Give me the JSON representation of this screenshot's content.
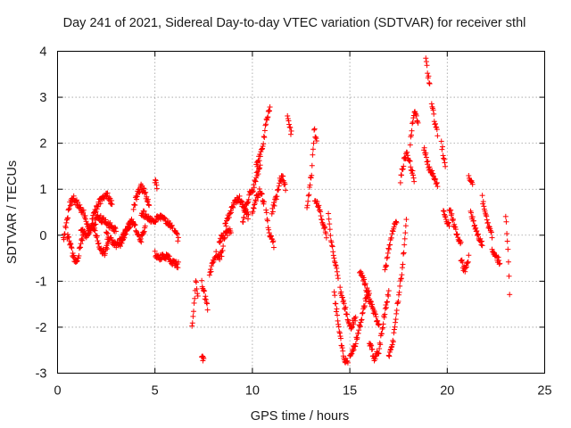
{
  "chart_data": {
    "type": "scatter",
    "title": "Day 241 of 2021, Sidereal Day-to-day VTEC variation (SDTVAR) for receiver sthl",
    "xlabel": "GPS time / hours",
    "ylabel": "SDTVAR / TECUs",
    "xlim": [
      0,
      25
    ],
    "ylim": [
      -3,
      4
    ],
    "xticks": [
      "0",
      "5",
      "10",
      "15",
      "20",
      "25"
    ],
    "yticks": [
      "-3",
      "-2",
      "-1",
      "0",
      "1",
      "2",
      "3",
      "4"
    ],
    "grid": true,
    "marker": "plus",
    "series_color": "#ff0000",
    "segments": [
      {
        "t0": 0.3,
        "t1": 2.0,
        "ys": [
          -0.1,
          0.3,
          0.7,
          0.8,
          0.7,
          0.6,
          0.5,
          0.3,
          0.1,
          0.4,
          0.6
        ]
      },
      {
        "t0": 0.5,
        "t1": 1.3,
        "ys": [
          0.0,
          -0.2,
          -0.5,
          -0.6,
          -0.3,
          0.0
        ]
      },
      {
        "t0": 1.2,
        "t1": 3.0,
        "ys": [
          0.1,
          0.0,
          0.2,
          0.4,
          0.3,
          0.2,
          0.1
        ]
      },
      {
        "t0": 1.8,
        "t1": 2.6,
        "ys": [
          0.2,
          0.0,
          -0.3,
          -0.4,
          -0.2
        ]
      },
      {
        "t0": 2.0,
        "t1": 2.8,
        "ys": [
          0.6,
          0.8,
          0.9,
          0.7
        ]
      },
      {
        "t0": 2.5,
        "t1": 3.8,
        "ys": [
          0.0,
          -0.1,
          -0.2,
          -0.1,
          0.1,
          0.3
        ]
      },
      {
        "t0": 3.2,
        "t1": 4.5,
        "ys": [
          -0.2,
          0.0,
          0.2,
          0.3,
          0.1,
          -0.1,
          0.2
        ]
      },
      {
        "t0": 3.9,
        "t1": 4.7,
        "ys": [
          0.6,
          0.9,
          1.05,
          0.9,
          0.7
        ]
      },
      {
        "t0": 4.3,
        "t1": 5.9,
        "ys": [
          0.5,
          0.4,
          0.3,
          0.4,
          0.3,
          0.2
        ]
      },
      {
        "t0": 5.0,
        "t1": 5.1,
        "ys": [
          1.2,
          1.0
        ]
      },
      {
        "t0": 5.0,
        "t1": 6.2,
        "ys": [
          -0.4,
          -0.5,
          -0.45,
          -0.5,
          -0.6,
          -0.65
        ]
      },
      {
        "t0": 6.0,
        "t1": 6.2,
        "ys": [
          0.1,
          -0.1
        ]
      },
      {
        "t0": 6.9,
        "t1": 7.2,
        "ys": [
          -2.0,
          -1.5,
          -1.0,
          -1.3
        ]
      },
      {
        "t0": 7.4,
        "t1": 7.7,
        "ys": [
          -1.0,
          -1.3,
          -1.6
        ]
      },
      {
        "t0": 7.4,
        "t1": 7.5,
        "ys": [
          -2.7,
          -2.7
        ]
      },
      {
        "t0": 7.8,
        "t1": 8.5,
        "ys": [
          -0.9,
          -0.6,
          -0.4,
          -0.5,
          -0.3
        ]
      },
      {
        "t0": 8.3,
        "t1": 8.9,
        "ys": [
          -0.1,
          0.0,
          0.1
        ]
      },
      {
        "t0": 8.6,
        "t1": 9.8,
        "ys": [
          0.2,
          0.5,
          0.7,
          0.8,
          0.6,
          0.4
        ]
      },
      {
        "t0": 9.5,
        "t1": 10.4,
        "ys": [
          0.3,
          0.6,
          0.9,
          1.0,
          1.3,
          1.5
        ]
      },
      {
        "t0": 10.2,
        "t1": 10.9,
        "ys": [
          1.5,
          1.7,
          2.0,
          2.5,
          2.8
        ]
      },
      {
        "t0": 10.0,
        "t1": 10.6,
        "ys": [
          0.5,
          0.8,
          1.0,
          0.7
        ]
      },
      {
        "t0": 10.7,
        "t1": 11.1,
        "ys": [
          0.5,
          0.0,
          -0.2
        ]
      },
      {
        "t0": 11.0,
        "t1": 11.7,
        "ys": [
          0.5,
          0.7,
          0.9,
          1.2,
          1.3,
          1.0
        ]
      },
      {
        "t0": 11.8,
        "t1": 12.0,
        "ys": [
          2.6,
          2.2
        ]
      },
      {
        "t0": 12.8,
        "t1": 13.3,
        "ys": [
          0.6,
          1.0,
          1.4,
          2.3,
          2.0
        ]
      },
      {
        "t0": 13.2,
        "t1": 13.8,
        "ys": [
          0.8,
          0.6,
          0.3,
          0.0
        ]
      },
      {
        "t0": 13.9,
        "t1": 14.4,
        "ys": [
          0.5,
          -0.2,
          -0.6,
          -0.9
        ]
      },
      {
        "t0": 14.2,
        "t1": 14.9,
        "ys": [
          -1.3,
          -1.8,
          -2.3,
          -2.7,
          -2.8
        ]
      },
      {
        "t0": 14.5,
        "t1": 15.3,
        "ys": [
          -1.2,
          -1.6,
          -2.0,
          -1.8
        ]
      },
      {
        "t0": 15.0,
        "t1": 16.0,
        "ys": [
          -2.6,
          -2.4,
          -2.0,
          -1.5,
          -1.2
        ]
      },
      {
        "t0": 15.5,
        "t1": 16.5,
        "ys": [
          -0.8,
          -1.0,
          -1.4,
          -1.7,
          -2.0
        ]
      },
      {
        "t0": 16.0,
        "t1": 17.0,
        "ys": [
          -2.3,
          -2.7,
          -2.5,
          -1.8,
          -1.2
        ]
      },
      {
        "t0": 16.8,
        "t1": 17.4,
        "ys": [
          -0.8,
          -0.3,
          0.1,
          0.3
        ]
      },
      {
        "t0": 17.0,
        "t1": 17.9,
        "ys": [
          -2.6,
          -2.3,
          -1.5,
          -0.8,
          0.3
        ]
      },
      {
        "t0": 17.6,
        "t1": 18.3,
        "ys": [
          1.2,
          1.6,
          1.8,
          1.5,
          1.2
        ]
      },
      {
        "t0": 18.1,
        "t1": 18.5,
        "ys": [
          2.0,
          2.7,
          2.5
        ]
      },
      {
        "t0": 18.8,
        "t1": 19.5,
        "ys": [
          1.9,
          1.5,
          1.3,
          1.1
        ]
      },
      {
        "t0": 18.9,
        "t1": 19.1,
        "ys": [
          3.85,
          3.5,
          3.3
        ]
      },
      {
        "t0": 19.2,
        "t1": 19.5,
        "ys": [
          2.9,
          2.5,
          2.2
        ]
      },
      {
        "t0": 19.7,
        "t1": 19.9,
        "ys": [
          2.0,
          1.5
        ]
      },
      {
        "t0": 19.8,
        "t1": 20.1,
        "ys": [
          0.5,
          0.2
        ]
      },
      {
        "t0": 20.1,
        "t1": 20.7,
        "ys": [
          0.6,
          0.3,
          0.0,
          -0.2
        ]
      },
      {
        "t0": 20.7,
        "t1": 21.1,
        "ys": [
          -0.5,
          -0.8,
          -0.5
        ]
      },
      {
        "t0": 21.1,
        "t1": 21.3,
        "ys": [
          1.3,
          1.1
        ]
      },
      {
        "t0": 21.2,
        "t1": 21.8,
        "ys": [
          0.5,
          0.1,
          -0.2
        ]
      },
      {
        "t0": 21.8,
        "t1": 22.3,
        "ys": [
          0.8,
          0.3,
          0.0
        ]
      },
      {
        "t0": 22.3,
        "t1": 22.7,
        "ys": [
          -0.3,
          -0.6
        ]
      },
      {
        "t0": 23.0,
        "t1": 23.2,
        "ys": [
          0.4,
          0.0,
          -0.5,
          -1.3
        ]
      }
    ]
  }
}
